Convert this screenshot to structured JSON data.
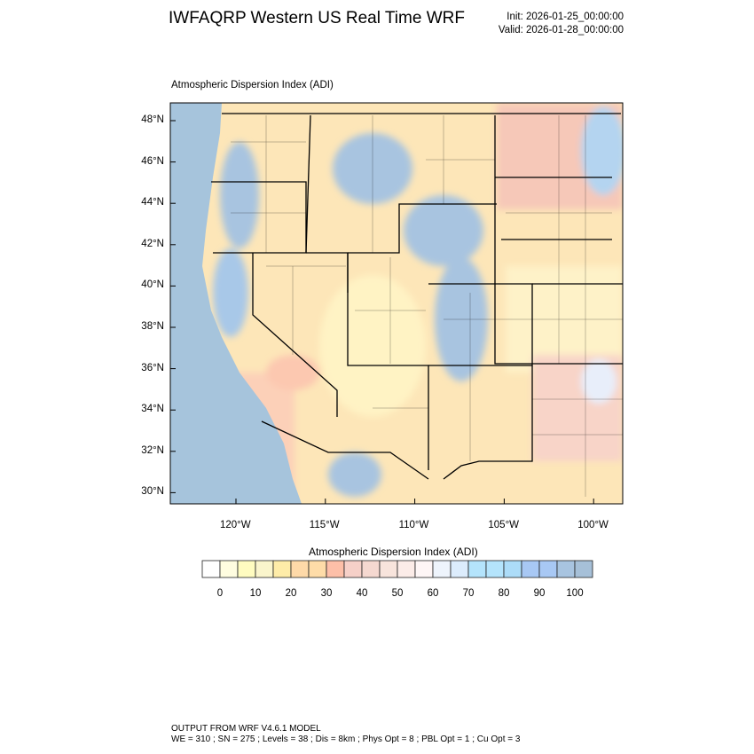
{
  "header": {
    "title": "IWFAQRP Western US Real Time WRF",
    "init": "Init: 2026-01-25_00:00:00",
    "valid": "Valid: 2026-01-28_00:00:00"
  },
  "map": {
    "subtitle": "Atmospheric Dispersion Index   (ADI)",
    "lat_labels": [
      "48°N",
      "46°N",
      "44°N",
      "42°N",
      "40°N",
      "38°N",
      "36°N",
      "34°N",
      "32°N",
      "30°N"
    ],
    "lon_labels": [
      "120°W",
      "115°W",
      "110°W",
      "105°W",
      "100°W"
    ],
    "ocean_color": "#a6c4dc",
    "land_base_color": "#fde6b8"
  },
  "colorbar": {
    "title": "Atmospheric Dispersion Index  (ADI)",
    "labels": [
      "0",
      "10",
      "20",
      "30",
      "40",
      "50",
      "60",
      "70",
      "80",
      "90",
      "100"
    ],
    "colors": [
      "#ffffff",
      "#fffde0",
      "#fffcc0",
      "#faf5cc",
      "#feeca8",
      "#fed9a8",
      "#fedca8",
      "#fdbfa8",
      "#f6d0c8",
      "#f5d8d0",
      "#f8e4dc",
      "#fcece8",
      "#fef6f6",
      "#eef4fc",
      "#dcecfc",
      "#b4e4fc",
      "#b4e4fc",
      "#acdcf8",
      "#a8c8f4",
      "#a8c8f4",
      "#a8c4e0",
      "#a6c0d8"
    ]
  },
  "footer": {
    "line1": "OUTPUT FROM WRF V4.6.1 MODEL",
    "line2": "WE = 310 ; SN = 275 ; Levels = 38 ; Dis = 8km ; Phys Opt = 8 ; PBL Opt = 1 ; Cu Opt = 3"
  }
}
